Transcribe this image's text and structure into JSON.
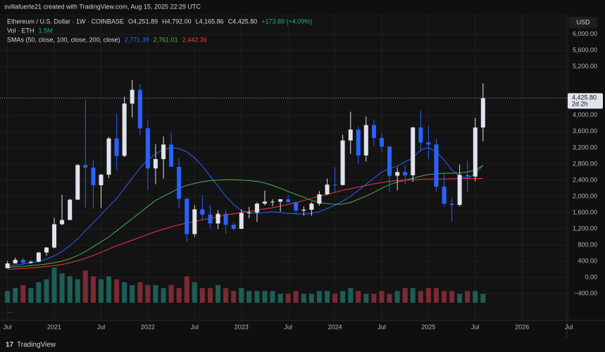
{
  "header": {
    "credit": "svillafuerte21 created with TradingView.com, Aug 15, 2025 22:29 UTC",
    "currency": "USD",
    "footer": "TradingView",
    "more": "..."
  },
  "chart_data": {
    "type": "candlestick",
    "title": "Ethereum / U.S. Dollar · 1W · COINBASE",
    "ohlc": [
      "O4,251.89",
      "H4,792.00",
      "L4,165.86",
      "C4,425.80"
    ],
    "change": "+173.89 (+4.09%)",
    "volume_title": "Vol · ETH",
    "volume_current": "1.5M",
    "sma_title": "SMAs (50, close, 100, close, 200, close)",
    "up_color": "#e0e3eb",
    "down_color": "#2962ff",
    "volume_up_color": "#1d5e55",
    "volume_down_color": "#7a2a31",
    "x": [
      2020.5,
      2020.583,
      2020.667,
      2020.75,
      2020.833,
      2020.917,
      2021,
      2021.083,
      2021.167,
      2021.25,
      2021.333,
      2021.417,
      2021.5,
      2021.583,
      2021.667,
      2021.75,
      2021.833,
      2021.917,
      2022,
      2022.083,
      2022.167,
      2022.25,
      2022.333,
      2022.417,
      2022.5,
      2022.583,
      2022.667,
      2022.75,
      2022.833,
      2022.917,
      2023,
      2023.083,
      2023.167,
      2023.25,
      2023.333,
      2023.417,
      2023.5,
      2023.583,
      2023.667,
      2023.75,
      2023.833,
      2023.917,
      2024,
      2024.083,
      2024.167,
      2024.25,
      2024.333,
      2024.417,
      2024.5,
      2024.583,
      2024.667,
      2024.75,
      2024.833,
      2024.917,
      2025,
      2025.083,
      2025.167,
      2025.25,
      2025.333,
      2025.417,
      2025.5,
      2025.583
    ],
    "open": [
      226,
      345,
      434,
      360,
      386,
      615,
      737,
      1312,
      1417,
      1918,
      2773,
      2710,
      2275,
      2535,
      3430,
      3000,
      4290,
      4630,
      3680,
      2690,
      2920,
      3280,
      2730,
      1940,
      1070,
      1680,
      1550,
      1330,
      1570,
      1300,
      1200,
      1590,
      1600,
      1820,
      1870,
      1870,
      1930,
      1860,
      1650,
      1670,
      1820,
      2050,
      2290,
      2280,
      3380,
      3650,
      3010,
      3760,
      3440,
      3230,
      2510,
      2600,
      2520,
      3700,
      3330,
      3280,
      2240,
      1820,
      1790,
      2530,
      2490,
      3700
    ],
    "high": [
      400,
      490,
      488,
      415,
      623,
      750,
      1475,
      2040,
      1940,
      2795,
      4380,
      2890,
      2550,
      3470,
      4030,
      4460,
      4870,
      4780,
      3880,
      3290,
      3480,
      3580,
      2950,
      1970,
      1780,
      2030,
      1790,
      1660,
      1680,
      1350,
      1680,
      1740,
      1850,
      2140,
      1930,
      1930,
      2030,
      1870,
      1750,
      1860,
      2130,
      2440,
      2720,
      3520,
      4090,
      3730,
      3970,
      3890,
      3560,
      3240,
      2720,
      2770,
      3720,
      4110,
      3740,
      3410,
      2550,
      1960,
      2790,
      2880,
      3940,
      4792
    ],
    "low": [
      226,
      345,
      308,
      335,
      370,
      535,
      715,
      1290,
      1440,
      1935,
      1730,
      1700,
      1720,
      2450,
      2650,
      2970,
      3950,
      3520,
      2160,
      2300,
      2440,
      2780,
      1710,
      890,
      1000,
      1420,
      1220,
      1190,
      1080,
      1160,
      1190,
      1460,
      1370,
      1780,
      1760,
      1620,
      1830,
      1550,
      1530,
      1520,
      1770,
      2030,
      2100,
      2270,
      3050,
      2810,
      2860,
      3240,
      3080,
      2110,
      2150,
      2310,
      2360,
      3100,
      2920,
      2120,
      1760,
      1380,
      1750,
      2110,
      2370,
      3360
    ],
    "close": [
      345,
      434,
      360,
      386,
      615,
      737,
      1312,
      1417,
      1918,
      2773,
      2710,
      2275,
      2535,
      3430,
      3000,
      4290,
      4630,
      3680,
      2690,
      2920,
      3280,
      2730,
      1940,
      1070,
      1680,
      1550,
      1330,
      1570,
      1300,
      1200,
      1590,
      1600,
      1820,
      1870,
      1870,
      1930,
      1860,
      1650,
      1670,
      1820,
      2050,
      2290,
      2280,
      3380,
      3650,
      3010,
      3760,
      3440,
      3230,
      2510,
      2600,
      2520,
      3700,
      3330,
      3280,
      2240,
      1820,
      1790,
      2530,
      2490,
      3700,
      4425.8
    ],
    "volume": [
      4,
      5,
      6,
      5,
      7,
      8,
      12,
      10,
      9,
      8,
      11,
      9,
      8,
      9,
      8,
      7,
      6,
      7,
      6,
      6,
      5,
      6,
      5,
      9,
      7,
      5,
      5,
      6,
      5,
      4,
      5,
      4,
      4,
      4,
      4,
      3,
      3,
      4,
      3,
      3,
      4,
      4,
      3,
      4,
      5,
      4,
      3,
      3,
      4,
      3,
      4,
      5,
      5,
      4,
      5,
      5,
      4,
      4,
      3,
      4,
      4,
      3
    ],
    "sma": [
      {
        "color": "#2962ff",
        "current_label": "2,771.39",
        "values": [
          280,
          300,
          330,
          360,
          400,
          450,
          530,
          640,
          780,
          950,
          1150,
          1350,
          1550,
          1750,
          1950,
          2200,
          2450,
          2700,
          2900,
          3050,
          3150,
          3200,
          3180,
          3100,
          2950,
          2750,
          2500,
          2250,
          2000,
          1800,
          1650,
          1600,
          1580,
          1600,
          1620,
          1600,
          1580,
          1570,
          1560,
          1580,
          1620,
          1700,
          1780,
          1880,
          2000,
          2150,
          2300,
          2450,
          2600,
          2680,
          2750,
          2850,
          2950,
          3150,
          3200,
          3100,
          2900,
          2650,
          2500,
          2450,
          2550,
          2771.39
        ]
      },
      {
        "color": "#4caf50",
        "current_label": "2,761.01",
        "values": [
          250,
          260,
          270,
          290,
          310,
          330,
          360,
          400,
          460,
          540,
          640,
          760,
          880,
          1000,
          1150,
          1300,
          1450,
          1600,
          1750,
          1900,
          2000,
          2100,
          2200,
          2270,
          2320,
          2360,
          2390,
          2400,
          2410,
          2410,
          2400,
          2390,
          2370,
          2330,
          2270,
          2200,
          2120,
          2050,
          1980,
          1900,
          1850,
          1820,
          1800,
          1810,
          1850,
          1930,
          2010,
          2100,
          2200,
          2290,
          2350,
          2400,
          2450,
          2500,
          2540,
          2560,
          2570,
          2570,
          2580,
          2600,
          2650,
          2761.01
        ]
      },
      {
        "color": "#f23645",
        "current_label": "2,442.36",
        "values": [
          200,
          210,
          220,
          230,
          250,
          270,
          290,
          320,
          360,
          410,
          470,
          540,
          620,
          700,
          780,
          850,
          920,
          990,
          1060,
          1130,
          1190,
          1250,
          1300,
          1340,
          1380,
          1420,
          1460,
          1500,
          1540,
          1570,
          1600,
          1630,
          1660,
          1690,
          1720,
          1760,
          1800,
          1850,
          1900,
          1950,
          2000,
          2050,
          2100,
          2150,
          2190,
          2230,
          2270,
          2310,
          2340,
          2370,
          2390,
          2400,
          2410,
          2420,
          2430,
          2430,
          2430,
          2435,
          2440,
          2440,
          2441,
          2442.36
        ]
      }
    ],
    "last_price": {
      "value": 4425.8,
      "label": "4,425.80"
    },
    "countdown": "2d 2h",
    "ylim": [
      -1060,
      6500
    ],
    "yticks": [
      {
        "value": -400,
        "label": "−400.00"
      },
      {
        "value": 0,
        "label": "0.00"
      },
      {
        "value": 400,
        "label": "400.00"
      },
      {
        "value": 800,
        "label": "800.00"
      },
      {
        "value": 1200,
        "label": "1,200.00"
      },
      {
        "value": 1600,
        "label": "1,600.00"
      },
      {
        "value": 2000,
        "label": "2,000.00"
      },
      {
        "value": 2400,
        "label": "2,400.00"
      },
      {
        "value": 2800,
        "label": "2,800.00"
      },
      {
        "value": 3200,
        "label": "3,200.00"
      },
      {
        "value": 3600,
        "label": "3,600.00"
      },
      {
        "value": 4000,
        "label": "4,000.00"
      },
      {
        "value": 5200,
        "label": "5,200.00"
      },
      {
        "value": 5600,
        "label": "5,600.00"
      },
      {
        "value": 6000,
        "label": "6,000.00"
      }
    ],
    "xlim": [
      2020.42,
      2026.48
    ],
    "xticks": [
      {
        "value": 2020.5,
        "label": "Jul"
      },
      {
        "value": 2021,
        "label": "2021"
      },
      {
        "value": 2021.5,
        "label": "Jul"
      },
      {
        "value": 2022,
        "label": "2022"
      },
      {
        "value": 2022.5,
        "label": "Jul"
      },
      {
        "value": 2023,
        "label": "2023"
      },
      {
        "value": 2023.5,
        "label": "Jul"
      },
      {
        "value": 2024,
        "label": "2024"
      },
      {
        "value": 2024.5,
        "label": "Jul"
      },
      {
        "value": 2025,
        "label": "2025"
      },
      {
        "value": 2025.5,
        "label": "Jul"
      },
      {
        "value": 2026,
        "label": "2026"
      },
      {
        "value": 2026.5,
        "label": "Jul"
      }
    ],
    "grid": true
  }
}
